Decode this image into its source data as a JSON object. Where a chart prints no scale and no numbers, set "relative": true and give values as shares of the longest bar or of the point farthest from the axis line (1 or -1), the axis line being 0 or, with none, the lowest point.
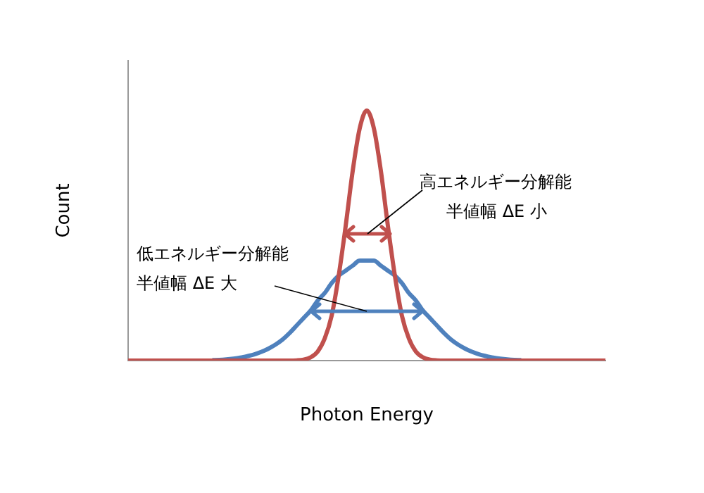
{
  "chart_data": {
    "type": "line",
    "relative": true,
    "xlabel": "Photon Energy",
    "ylabel": "Count",
    "legend": false,
    "grid": false,
    "marker": "none",
    "line_style": "solid",
    "categories": [
      null,
      null,
      null,
      null,
      null,
      null,
      null,
      null,
      null,
      null,
      null,
      null,
      null,
      null,
      null,
      null,
      null,
      null,
      null,
      null,
      null,
      null,
      null,
      null,
      null,
      null,
      null,
      null,
      null,
      null,
      null,
      null,
      null,
      null,
      null,
      null,
      null,
      null,
      null,
      null,
      null,
      null,
      null,
      null,
      null,
      null,
      null,
      null,
      null,
      null,
      null,
      null,
      null,
      null,
      null,
      null,
      null,
      null,
      null,
      null,
      null,
      null,
      null,
      null,
      null,
      null,
      null,
      null,
      null
    ],
    "series": [
      {
        "color": "#c0504d",
        "values": [
          0,
          0,
          0,
          0,
          0,
          0,
          0,
          0,
          0,
          0,
          0,
          0,
          0,
          0,
          0,
          0,
          0,
          0,
          0,
          0,
          0,
          0,
          0,
          0,
          0.001,
          0.004,
          0.013,
          0.036,
          0.088,
          0.18,
          0.34,
          0.54,
          0.76,
          0.93,
          1,
          0.93,
          0.76,
          0.54,
          0.34,
          0.18,
          0.088,
          0.036,
          0.013,
          0.004,
          0.001,
          0,
          0,
          0,
          0,
          0,
          0,
          0,
          0,
          0,
          0,
          0,
          0,
          0,
          0,
          0,
          0,
          0,
          0,
          0,
          0,
          0,
          0,
          0,
          0
        ]
      },
      {
        "color": "#4f81bd",
        "values": [
          null,
          null,
          null,
          null,
          null,
          null,
          null,
          null,
          null,
          null,
          null,
          null,
          0.002,
          0.003,
          0.005,
          0.008,
          0.012,
          0.018,
          0.025,
          0.035,
          0.048,
          0.064,
          0.084,
          0.11,
          0.14,
          0.17,
          0.2,
          0.24,
          0.27,
          0.31,
          0.34,
          0.36,
          0.38,
          0.4,
          0.4,
          0.4,
          0.38,
          0.36,
          0.34,
          0.31,
          0.27,
          0.24,
          0.2,
          0.17,
          0.14,
          0.11,
          0.084,
          0.064,
          0.048,
          0.035,
          0.025,
          0.018,
          0.012,
          0.008,
          0.005,
          0.003,
          0.002,
          null,
          null,
          null,
          null,
          null,
          null,
          null,
          null,
          null,
          null,
          null,
          null
        ]
      }
    ],
    "annotations": [
      "高エネルギー分解能",
      "半値幅 ΔE 小",
      "低エネルギー分解能",
      "半値幅 ΔE 大"
    ]
  }
}
